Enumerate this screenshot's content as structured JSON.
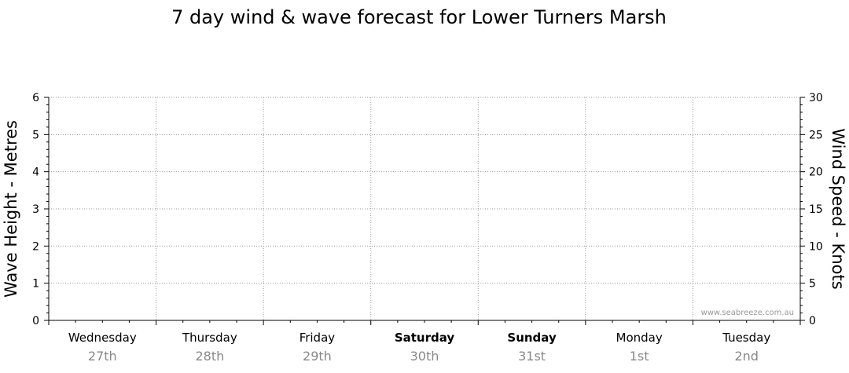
{
  "chart_data": {
    "type": "line",
    "title": "7 day wind & wave forecast for Lower Turners Marsh",
    "ylabel": "Wave Height - Metres",
    "ylabel_right": "Wind Speed - Knots",
    "ylim": [
      0,
      6
    ],
    "ylim_right": [
      0,
      30
    ],
    "yticks": [
      "0",
      "1",
      "2",
      "3",
      "4",
      "5",
      "6"
    ],
    "yticks_right": [
      "0",
      "5",
      "10",
      "15",
      "20",
      "25",
      "30"
    ],
    "grid": true,
    "days": [
      {
        "name": "Wednesday",
        "date": "27th",
        "bold": false
      },
      {
        "name": "Thursday",
        "date": "28th",
        "bold": false
      },
      {
        "name": "Friday",
        "date": "29th",
        "bold": false
      },
      {
        "name": "Saturday",
        "date": "30th",
        "bold": true
      },
      {
        "name": "Sunday",
        "date": "31st",
        "bold": true
      },
      {
        "name": "Monday",
        "date": "1st",
        "bold": false
      },
      {
        "name": "Tuesday",
        "date": "2nd",
        "bold": false
      }
    ],
    "series": [],
    "watermark": "www.seabreeze.com.au"
  }
}
